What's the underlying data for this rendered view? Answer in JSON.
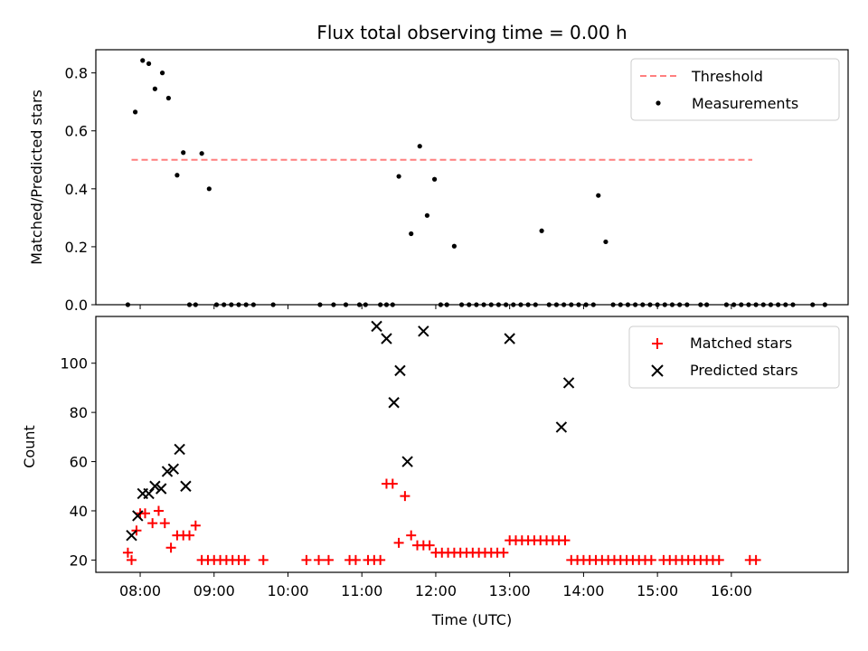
{
  "chart_data": [
    {
      "type": "scatter",
      "title": "Flux total observing time = 0.00 h",
      "ylabel": "Matched/Predicted stars",
      "xlabel": "",
      "ylim": [
        0,
        0.88
      ],
      "yticks": [
        "0.0",
        "0.2",
        "0.4",
        "0.6",
        "0.8"
      ],
      "xticks": [
        "08:00",
        "09:00",
        "10:00",
        "11:00",
        "12:00",
        "13:00",
        "14:00",
        "15:00",
        "16:00"
      ],
      "xtick_labels_visible": false,
      "threshold": {
        "value": 0.5,
        "x_start": "07:53",
        "x_end": "16:17",
        "color": "#ff7f7f"
      },
      "legend": {
        "placement": "upper-right",
        "entries": [
          "Threshold",
          "Measurements"
        ]
      },
      "series": [
        {
          "name": "Measurements",
          "color": "#000000",
          "marker": "dot",
          "points": [
            [
              "07:50",
              0.0
            ],
            [
              "07:56",
              0.665
            ],
            [
              "08:02",
              0.843
            ],
            [
              "08:07",
              0.832
            ],
            [
              "08:12",
              0.745
            ],
            [
              "08:18",
              0.8
            ],
            [
              "08:23",
              0.713
            ],
            [
              "08:30",
              0.447
            ],
            [
              "08:35",
              0.525
            ],
            [
              "08:40",
              0.0
            ],
            [
              "08:45",
              0.0
            ],
            [
              "08:50",
              0.522
            ],
            [
              "08:56",
              0.4
            ],
            [
              "09:02",
              0.0
            ],
            [
              "09:08",
              0.0
            ],
            [
              "09:14",
              0.0
            ],
            [
              "09:20",
              0.0
            ],
            [
              "09:26",
              0.0
            ],
            [
              "09:32",
              0.0
            ],
            [
              "09:48",
              0.0
            ],
            [
              "10:26",
              0.0
            ],
            [
              "10:37",
              0.0
            ],
            [
              "10:47",
              0.0
            ],
            [
              "10:58",
              0.0
            ],
            [
              "11:03",
              0.0
            ],
            [
              "11:15",
              0.0
            ],
            [
              "11:20",
              0.0
            ],
            [
              "11:25",
              0.0
            ],
            [
              "11:30",
              0.443
            ],
            [
              "11:40",
              0.245
            ],
            [
              "11:47",
              0.547
            ],
            [
              "11:53",
              0.308
            ],
            [
              "11:59",
              0.433
            ],
            [
              "12:04",
              0.0
            ],
            [
              "12:09",
              0.0
            ],
            [
              "12:15",
              0.202
            ],
            [
              "12:21",
              0.0
            ],
            [
              "12:27",
              0.0
            ],
            [
              "12:33",
              0.0
            ],
            [
              "12:39",
              0.0
            ],
            [
              "12:45",
              0.0
            ],
            [
              "12:51",
              0.0
            ],
            [
              "12:57",
              0.0
            ],
            [
              "13:03",
              0.0
            ],
            [
              "13:09",
              0.0
            ],
            [
              "13:15",
              0.0
            ],
            [
              "13:21",
              0.0
            ],
            [
              "13:26",
              0.255
            ],
            [
              "13:32",
              0.0
            ],
            [
              "13:38",
              0.0
            ],
            [
              "13:44",
              0.0
            ],
            [
              "13:50",
              0.0
            ],
            [
              "13:56",
              0.0
            ],
            [
              "14:02",
              0.0
            ],
            [
              "14:08",
              0.0
            ],
            [
              "14:12",
              0.377
            ],
            [
              "14:18",
              0.217
            ],
            [
              "14:24",
              0.0
            ],
            [
              "14:30",
              0.0
            ],
            [
              "14:36",
              0.0
            ],
            [
              "14:42",
              0.0
            ],
            [
              "14:48",
              0.0
            ],
            [
              "14:54",
              0.0
            ],
            [
              "15:00",
              0.0
            ],
            [
              "15:06",
              0.0
            ],
            [
              "15:12",
              0.0
            ],
            [
              "15:18",
              0.0
            ],
            [
              "15:24",
              0.0
            ],
            [
              "15:35",
              0.0
            ],
            [
              "15:40",
              0.0
            ],
            [
              "15:56",
              0.0
            ],
            [
              "16:02",
              0.0
            ],
            [
              "16:08",
              0.0
            ],
            [
              "16:14",
              0.0
            ],
            [
              "16:20",
              0.0
            ],
            [
              "16:26",
              0.0
            ],
            [
              "16:32",
              0.0
            ],
            [
              "16:38",
              0.0
            ],
            [
              "16:44",
              0.0
            ],
            [
              "16:50",
              0.0
            ],
            [
              "17:06",
              0.0
            ],
            [
              "17:16",
              0.0
            ]
          ]
        }
      ]
    },
    {
      "type": "scatter",
      "title": "",
      "ylabel": "Count",
      "xlabel": "Time (UTC)",
      "ylim": [
        15,
        119
      ],
      "yticks": [
        "20",
        "40",
        "60",
        "80",
        "100"
      ],
      "xticks": [
        "08:00",
        "09:00",
        "10:00",
        "11:00",
        "12:00",
        "13:00",
        "14:00",
        "15:00",
        "16:00"
      ],
      "legend": {
        "placement": "upper-right",
        "entries": [
          "Matched stars",
          "Predicted stars"
        ]
      },
      "series": [
        {
          "name": "Matched stars",
          "color": "#ff0000",
          "marker": "plus",
          "points": [
            [
              "07:50",
              23
            ],
            [
              "07:53",
              20
            ],
            [
              "07:57",
              32
            ],
            [
              "08:00",
              39
            ],
            [
              "08:04",
              39
            ],
            [
              "08:10",
              35
            ],
            [
              "08:15",
              40
            ],
            [
              "08:20",
              35
            ],
            [
              "08:25",
              25
            ],
            [
              "08:30",
              30
            ],
            [
              "08:35",
              30
            ],
            [
              "08:40",
              30
            ],
            [
              "08:45",
              34
            ],
            [
              "08:50",
              20
            ],
            [
              "08:55",
              20
            ],
            [
              "09:00",
              20
            ],
            [
              "09:05",
              20
            ],
            [
              "09:10",
              20
            ],
            [
              "09:15",
              20
            ],
            [
              "09:20",
              20
            ],
            [
              "09:25",
              20
            ],
            [
              "09:40",
              20
            ],
            [
              "10:15",
              20
            ],
            [
              "10:25",
              20
            ],
            [
              "10:33",
              20
            ],
            [
              "10:50",
              20
            ],
            [
              "10:55",
              20
            ],
            [
              "11:05",
              20
            ],
            [
              "11:10",
              20
            ],
            [
              "11:15",
              20
            ],
            [
              "11:20",
              51
            ],
            [
              "11:25",
              51
            ],
            [
              "11:30",
              27
            ],
            [
              "11:35",
              46
            ],
            [
              "11:40",
              30
            ],
            [
              "11:45",
              26
            ],
            [
              "11:50",
              26
            ],
            [
              "11:55",
              26
            ],
            [
              "12:00",
              23
            ],
            [
              "12:05",
              23
            ],
            [
              "12:10",
              23
            ],
            [
              "12:15",
              23
            ],
            [
              "12:20",
              23
            ],
            [
              "12:25",
              23
            ],
            [
              "12:30",
              23
            ],
            [
              "12:35",
              23
            ],
            [
              "12:40",
              23
            ],
            [
              "12:45",
              23
            ],
            [
              "12:50",
              23
            ],
            [
              "12:55",
              23
            ],
            [
              "13:00",
              28
            ],
            [
              "13:05",
              28
            ],
            [
              "13:10",
              28
            ],
            [
              "13:15",
              28
            ],
            [
              "13:20",
              28
            ],
            [
              "13:25",
              28
            ],
            [
              "13:30",
              28
            ],
            [
              "13:35",
              28
            ],
            [
              "13:40",
              28
            ],
            [
              "13:45",
              28
            ],
            [
              "13:50",
              20
            ],
            [
              "13:55",
              20
            ],
            [
              "14:00",
              20
            ],
            [
              "14:05",
              20
            ],
            [
              "14:10",
              20
            ],
            [
              "14:15",
              20
            ],
            [
              "14:20",
              20
            ],
            [
              "14:25",
              20
            ],
            [
              "14:30",
              20
            ],
            [
              "14:35",
              20
            ],
            [
              "14:40",
              20
            ],
            [
              "14:45",
              20
            ],
            [
              "14:50",
              20
            ],
            [
              "14:55",
              20
            ],
            [
              "15:05",
              20
            ],
            [
              "15:10",
              20
            ],
            [
              "15:15",
              20
            ],
            [
              "15:20",
              20
            ],
            [
              "15:25",
              20
            ],
            [
              "15:30",
              20
            ],
            [
              "15:35",
              20
            ],
            [
              "15:40",
              20
            ],
            [
              "15:45",
              20
            ],
            [
              "15:50",
              20
            ],
            [
              "16:15",
              20
            ],
            [
              "16:20",
              20
            ]
          ]
        },
        {
          "name": "Predicted stars",
          "color": "#000000",
          "marker": "x",
          "points": [
            [
              "07:53",
              30
            ],
            [
              "07:58",
              38
            ],
            [
              "08:02",
              47
            ],
            [
              "08:07",
              47
            ],
            [
              "08:12",
              50
            ],
            [
              "08:17",
              49
            ],
            [
              "08:22",
              56
            ],
            [
              "08:27",
              57
            ],
            [
              "08:32",
              65
            ],
            [
              "08:37",
              50
            ],
            [
              "11:12",
              115
            ],
            [
              "11:20",
              110
            ],
            [
              "11:26",
              84
            ],
            [
              "11:31",
              97
            ],
            [
              "11:37",
              60
            ],
            [
              "11:50",
              113
            ],
            [
              "13:00",
              110
            ],
            [
              "13:42",
              74
            ],
            [
              "13:48",
              92
            ]
          ]
        }
      ]
    }
  ]
}
